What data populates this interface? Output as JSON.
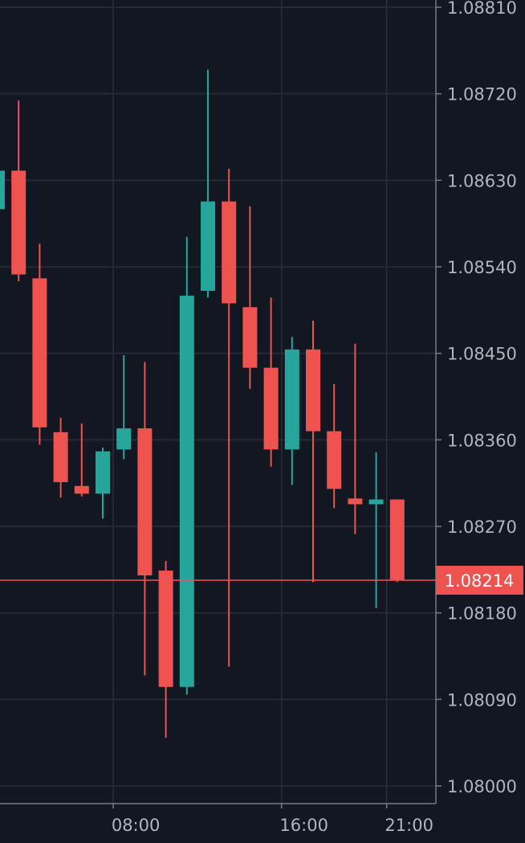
{
  "chart_data": {
    "type": "candlestick",
    "grid": true,
    "colors": {
      "background": "#131722",
      "grid": "#2a2e39",
      "axis": "#787b86",
      "tick_text": "#b2b5be",
      "up": "#26a69a",
      "down": "#ef5350",
      "price_line": "#ef5350",
      "price_tag_text": "#ffffff"
    },
    "ylim": [
      1.07985,
      1.0881
    ],
    "y_ticks": [
      "1.08810",
      "1.08720",
      "1.08630",
      "1.08540",
      "1.08450",
      "1.08360",
      "1.08270",
      "1.08180",
      "1.08090",
      "1.08000"
    ],
    "x_ticks": [
      {
        "label": "08:00",
        "index": 5.5
      },
      {
        "label": "16:00",
        "index": 13.5
      },
      {
        "label": "21:00",
        "index": 18.5
      }
    ],
    "last_price": {
      "value": 1.08214,
      "label": "1.08214"
    },
    "candles": [
      {
        "o": 1.086,
        "h": 1.0867,
        "l": 1.0856,
        "c": 1.0864
      },
      {
        "o": 1.0864,
        "h": 1.08713,
        "l": 1.08525,
        "c": 1.08532
      },
      {
        "o": 1.08528,
        "h": 1.08564,
        "l": 1.08355,
        "c": 1.08373
      },
      {
        "o": 1.08368,
        "h": 1.08383,
        "l": 1.083,
        "c": 1.08316
      },
      {
        "o": 1.08312,
        "h": 1.08377,
        "l": 1.08301,
        "c": 1.08304
      },
      {
        "o": 1.08304,
        "h": 1.08352,
        "l": 1.08278,
        "c": 1.08348
      },
      {
        "o": 1.0835,
        "h": 1.08448,
        "l": 1.0834,
        "c": 1.08372
      },
      {
        "o": 1.08372,
        "h": 1.08441,
        "l": 1.08115,
        "c": 1.08219
      },
      {
        "o": 1.08224,
        "h": 1.08234,
        "l": 1.0805,
        "c": 1.08103
      },
      {
        "o": 1.08103,
        "h": 1.08571,
        "l": 1.08095,
        "c": 1.0851
      },
      {
        "o": 1.08515,
        "h": 1.08745,
        "l": 1.08508,
        "c": 1.08608
      },
      {
        "o": 1.08608,
        "h": 1.08642,
        "l": 1.08124,
        "c": 1.08502
      },
      {
        "o": 1.08498,
        "h": 1.08603,
        "l": 1.08413,
        "c": 1.08435
      },
      {
        "o": 1.08435,
        "h": 1.08508,
        "l": 1.08332,
        "c": 1.0835
      },
      {
        "o": 1.0835,
        "h": 1.08467,
        "l": 1.08313,
        "c": 1.08454
      },
      {
        "o": 1.08454,
        "h": 1.08484,
        "l": 1.08212,
        "c": 1.08369
      },
      {
        "o": 1.08369,
        "h": 1.08418,
        "l": 1.08289,
        "c": 1.08309
      },
      {
        "o": 1.08299,
        "h": 1.0846,
        "l": 1.08262,
        "c": 1.08293
      },
      {
        "o": 1.08293,
        "h": 1.08347,
        "l": 1.08185,
        "c": 1.08298
      },
      {
        "o": 1.08298,
        "h": 1.08298,
        "l": 1.08212,
        "c": 1.08214
      }
    ]
  }
}
